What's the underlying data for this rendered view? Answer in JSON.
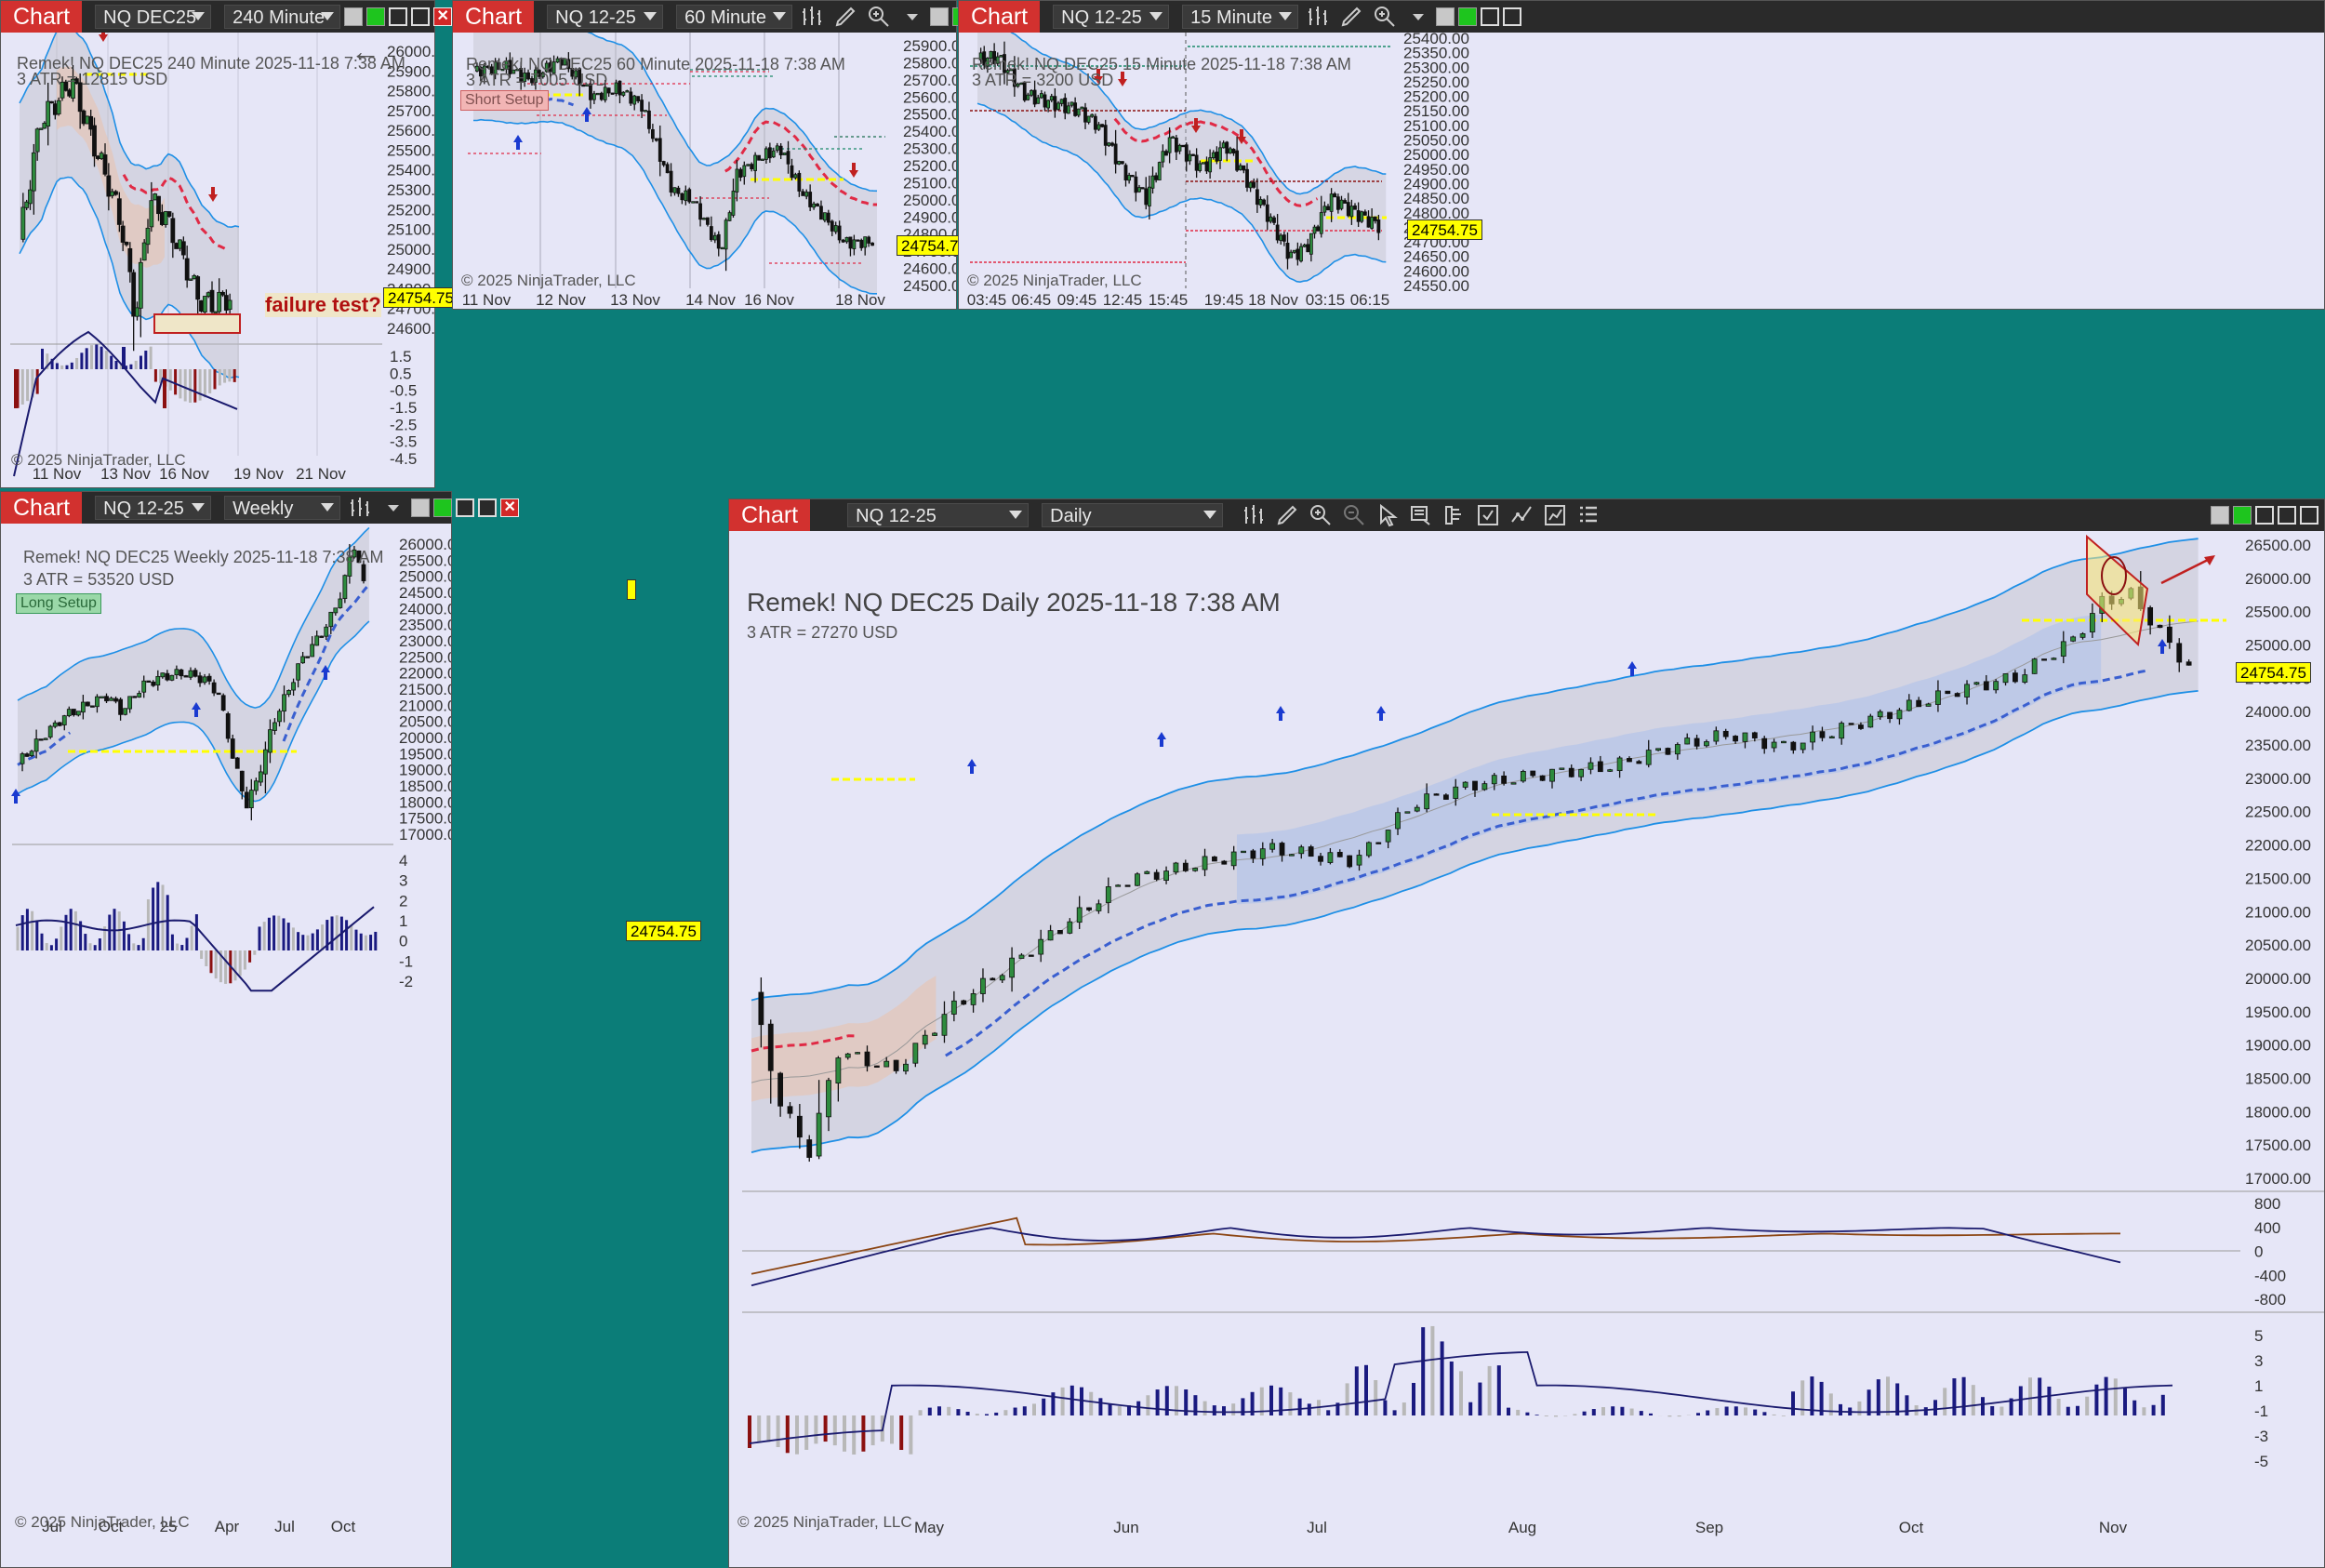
{
  "common": {
    "chart_tab": "Chart",
    "price": "24754.75",
    "copyright": "© 2025 NinjaTrader, LLC"
  },
  "w240": {
    "instrument": "NQ DEC25",
    "interval": "240 Minute",
    "title": "Remek!  NQ DEC25  240 Minute  2025-11-18 7:38 AM",
    "atr": "3 ATR = 12815 USD",
    "annotation": "failure test?",
    "yticks": [
      "26000.00",
      "25900.00",
      "25800.00",
      "25700.00",
      "25600.00",
      "25500.00",
      "25400.00",
      "25300.00",
      "25200.00",
      "25100.00",
      "25000.00",
      "24900.00",
      "24800.00",
      "24700.00",
      "24600.00"
    ],
    "osc_ticks": [
      "1.5",
      "0.5",
      "-0.5",
      "-1.5",
      "-2.5",
      "-3.5",
      "-4.5"
    ],
    "xticks": [
      "11 Nov",
      "13 Nov",
      "16 Nov",
      "19 Nov",
      "21 Nov"
    ]
  },
  "w60": {
    "instrument": "NQ 12-25",
    "interval": "60 Minute",
    "title": "Remek!  NQ DEC25  60 Minute  2025-11-18 7:38 AM",
    "atr": "3 ATR = 7005 USD",
    "setup": "Short Setup",
    "yticks": [
      "25900.00",
      "25800.00",
      "25700.00",
      "25600.00",
      "25500.00",
      "25400.00",
      "25300.00",
      "25200.00",
      "25100.00",
      "25000.00",
      "24900.00",
      "24800.00",
      "24700.00",
      "24600.00",
      "24500.00"
    ],
    "xticks": [
      "11 Nov",
      "12 Nov",
      "13 Nov",
      "14 Nov",
      "16 Nov",
      "18 Nov"
    ]
  },
  "w15": {
    "instrument": "NQ 12-25",
    "interval": "15 Minute",
    "title": "Remek!  NQ DEC25  15 Minute  2025-11-18 7:38 AM",
    "atr": "3 ATR = 3200 USD",
    "yticks": [
      "25400.00",
      "25350.00",
      "25300.00",
      "25250.00",
      "25200.00",
      "25150.00",
      "25100.00",
      "25050.00",
      "25000.00",
      "24950.00",
      "24900.00",
      "24850.00",
      "24800.00",
      "24750.00",
      "24700.00",
      "24650.00",
      "24600.00",
      "24550.00"
    ],
    "xticks": [
      "03:45",
      "06:45",
      "09:45",
      "12:45",
      "15:45",
      "19:45",
      "18 Nov",
      "03:15",
      "06:15"
    ]
  },
  "wweek": {
    "instrument": "NQ 12-25",
    "interval": "Weekly",
    "title": "Remek!  NQ DEC25  Weekly  2025-11-18 7:38 AM",
    "atr": "3 ATR = 53520 USD",
    "setup": "Long Setup",
    "yticks": [
      "26000.00",
      "25500.00",
      "25000.00",
      "24500.00",
      "24000.00",
      "23500.00",
      "23000.00",
      "22500.00",
      "22000.00",
      "21500.00",
      "21000.00",
      "20500.00",
      "20000.00",
      "19500.00",
      "19000.00",
      "18500.00",
      "18000.00",
      "17500.00",
      "17000.00"
    ],
    "osc_ticks": [
      "4",
      "3",
      "2",
      "1",
      "0",
      "-1",
      "-2"
    ],
    "xticks": [
      "Jul",
      "Oct",
      "25",
      "Apr",
      "Jul",
      "Oct"
    ]
  },
  "wday": {
    "instrument": "NQ 12-25",
    "interval": "Daily",
    "title": "Remek!  NQ DEC25  Daily  2025-11-18 7:38 AM",
    "atr": "3 ATR = 27270 USD",
    "yticks": [
      "26500.00",
      "26000.00",
      "25500.00",
      "25000.00",
      "24500.00",
      "24000.00",
      "23500.00",
      "23000.00",
      "22500.00",
      "22000.00",
      "21500.00",
      "21000.00",
      "20500.00",
      "20000.00",
      "19500.00",
      "19000.00",
      "18500.00",
      "18000.00",
      "17500.00",
      "17000.00"
    ],
    "osc1_ticks": [
      "800",
      "400",
      "0",
      "-400",
      "-800"
    ],
    "osc2_ticks": [
      "5",
      "3",
      "1",
      "-1",
      "-3",
      "-5"
    ],
    "xticks": [
      "May",
      "Jun",
      "Jul",
      "Aug",
      "Sep",
      "Oct",
      "Nov"
    ]
  },
  "icons": [
    "bars-type-icon",
    "draw-tool-icon",
    "zoom-in-icon",
    "zoom-out-icon",
    "pointer-icon",
    "data-box-icon",
    "template-icon",
    "properties-icon",
    "indicators-icon",
    "strategies-icon",
    "list-icon",
    "back-arrow-icon"
  ],
  "colors": {
    "bull": "#2e8b3e",
    "bear": "#111111",
    "band": "#1e8fe6",
    "stop": "#e02a45",
    "entry": "#ffff00",
    "macd": "#1a1a6e",
    "signal": "#8b4513",
    "hist_pos": "#1a1a80",
    "hist_neg": "#8b1010",
    "hist_gray": "#b8b8b8"
  }
}
